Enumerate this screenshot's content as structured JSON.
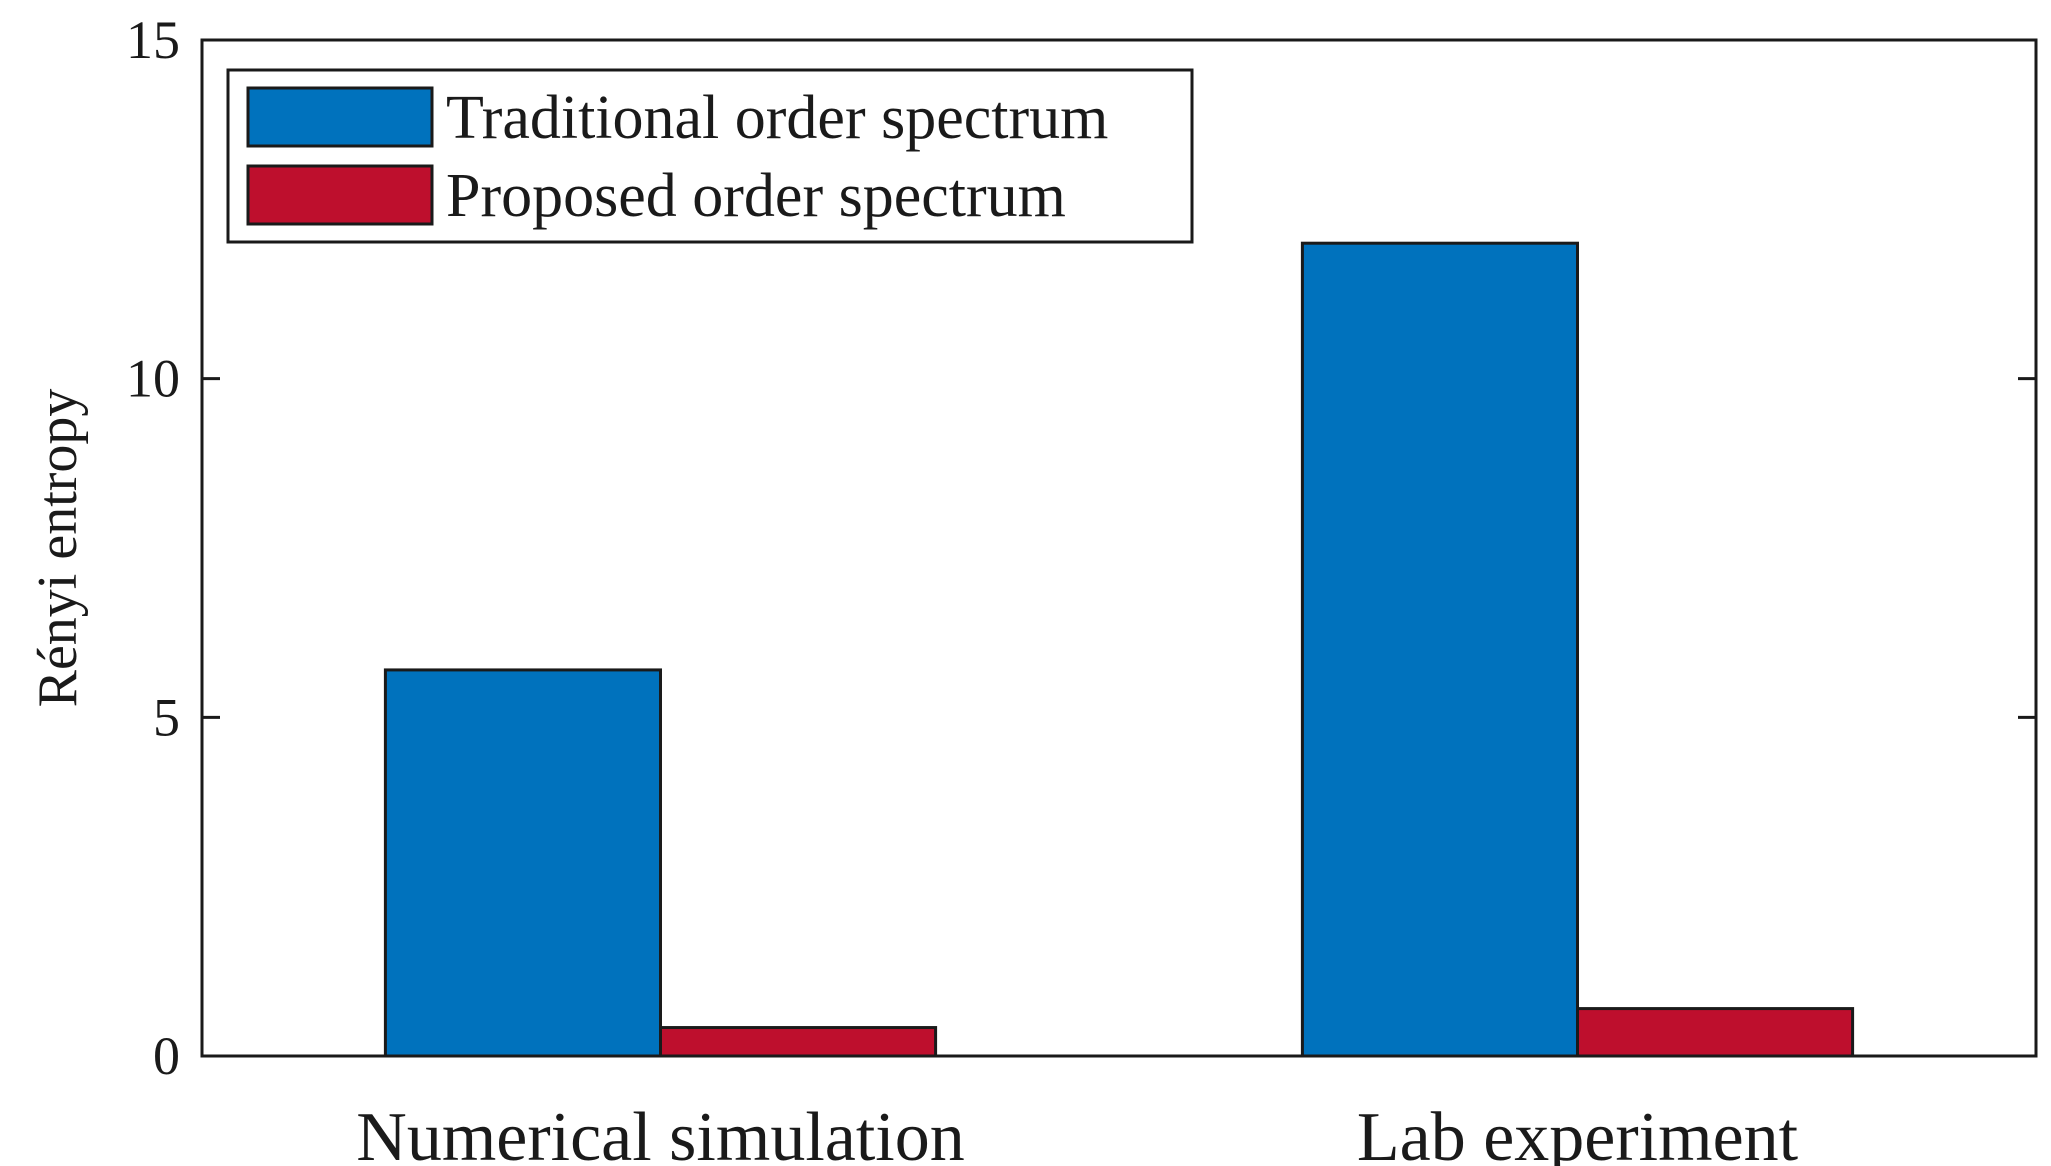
{
  "chart_data": {
    "type": "bar",
    "title": "",
    "xlabel": "",
    "ylabel": "Rényi entropy",
    "ylim": [
      0,
      15
    ],
    "yticks": [
      0,
      5,
      10,
      15
    ],
    "categories": [
      "Numerical simulation",
      "Lab experiment"
    ],
    "series": [
      {
        "name": "Traditional order spectrum",
        "color": "#0072bd",
        "values": [
          5.7,
          12.0
        ]
      },
      {
        "name": "Proposed order spectrum",
        "color": "#be0f2d",
        "values": [
          0.42,
          0.7
        ]
      }
    ],
    "legend": {
      "position": "top-left"
    },
    "grid": false
  }
}
